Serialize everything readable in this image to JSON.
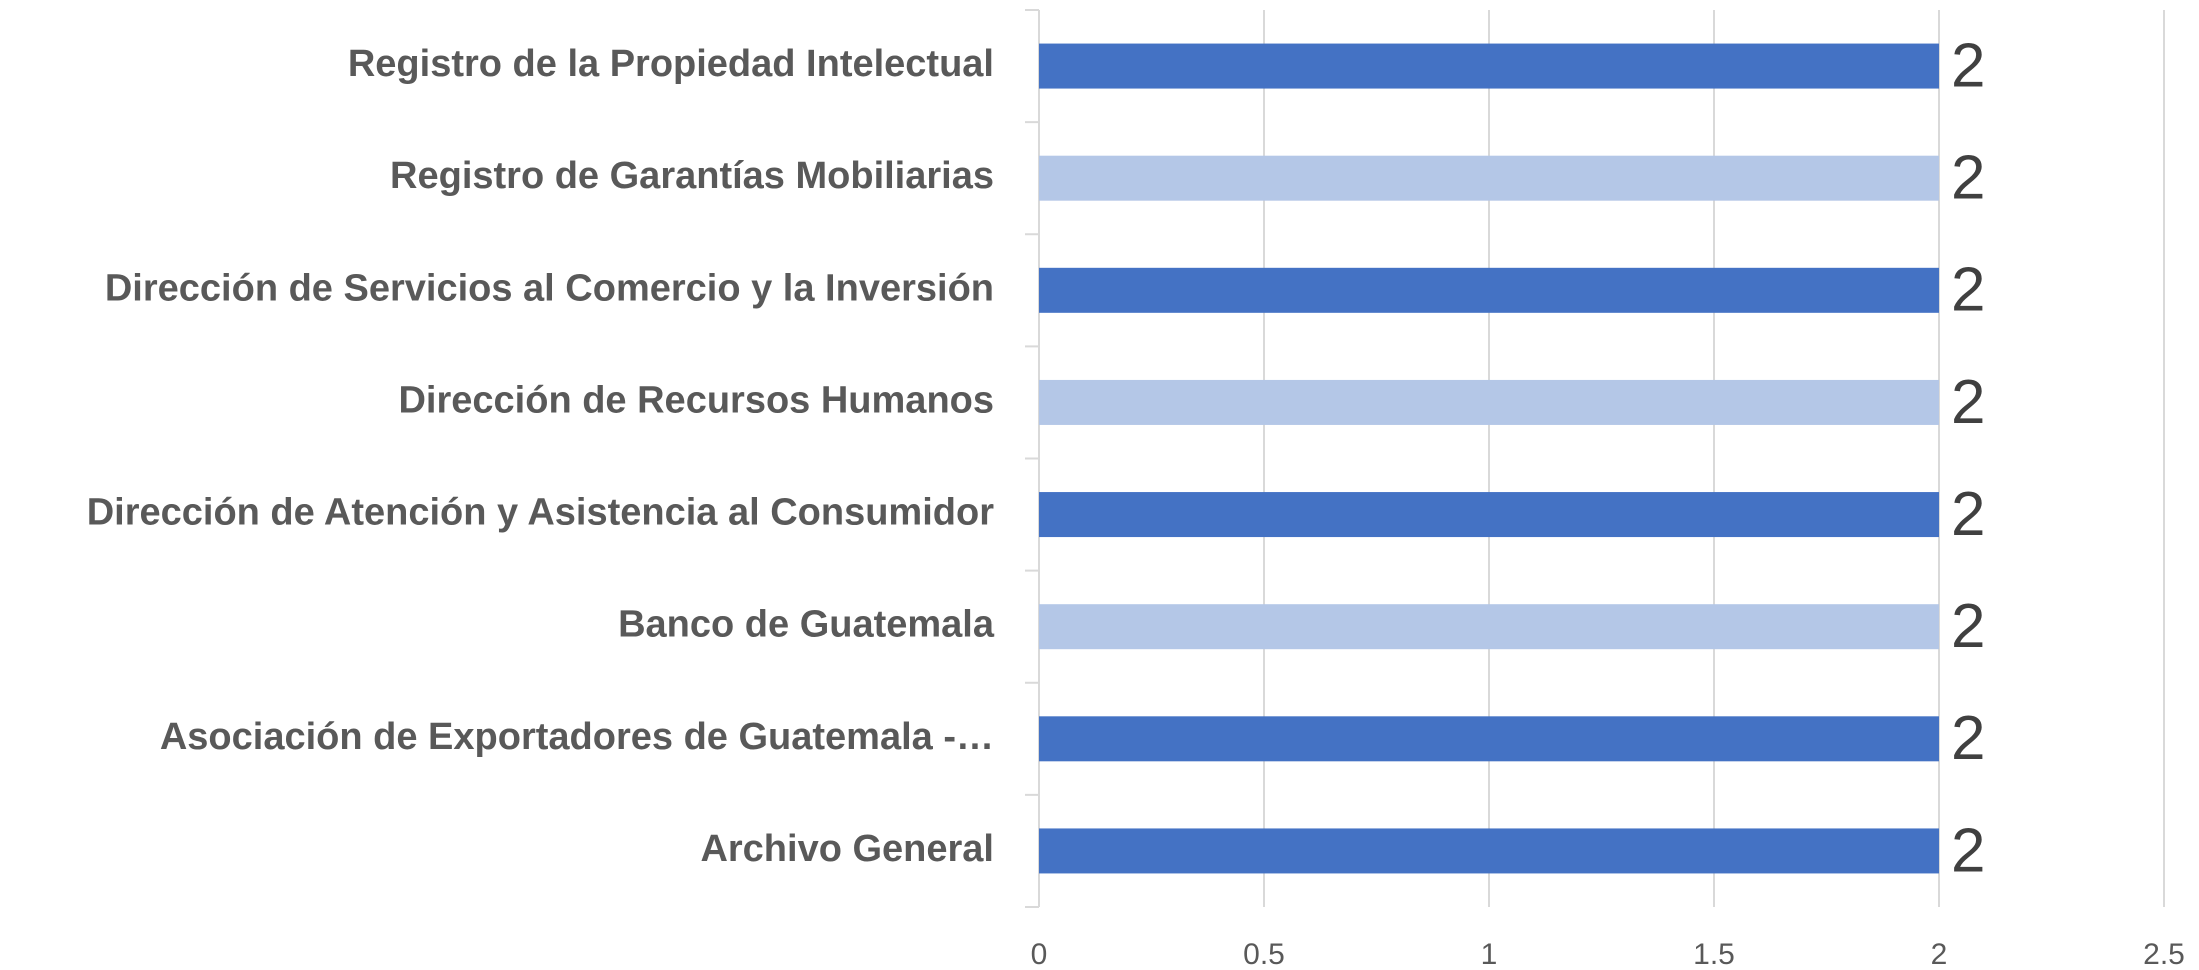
{
  "chart_data": {
    "type": "bar",
    "orientation": "horizontal",
    "categories": [
      "Registro de la Propiedad Intelectual",
      "Registro de Garantías Mobiliarias",
      "Dirección de Servicios al Comercio y la Inversión",
      "Dirección de Recursos Humanos",
      "Dirección de Atención y Asistencia al Consumidor",
      "Banco de Guatemala",
      "Asociación de Exportadores de Guatemala -…",
      "Archivo General"
    ],
    "values": [
      2,
      2,
      2,
      2,
      2,
      2,
      2,
      2
    ],
    "colors": [
      "#4472c4",
      "#b4c7e7",
      "#4472c4",
      "#b4c7e7",
      "#4472c4",
      "#b4c7e7",
      "#4472c4",
      "#4472c4"
    ],
    "xlim": [
      0,
      2.5
    ],
    "xticks": [
      0,
      0.5,
      1,
      1.5,
      2,
      2.5
    ],
    "grid": true
  }
}
